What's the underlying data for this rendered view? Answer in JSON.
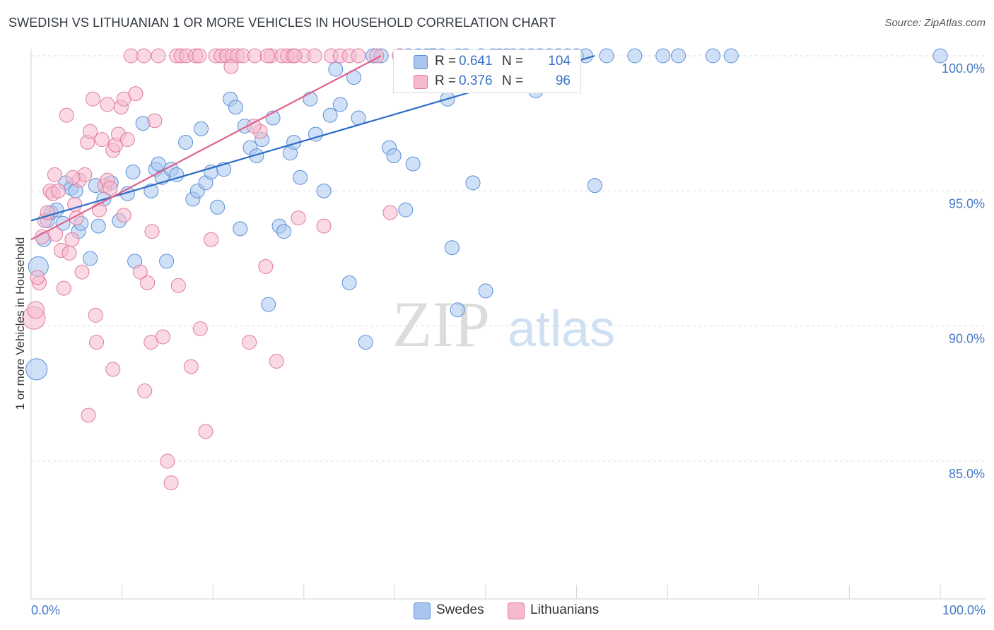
{
  "title": "SWEDISH VS LITHUANIAN 1 OR MORE VEHICLES IN HOUSEHOLD CORRELATION CHART",
  "source": "Source: ZipAtlas.com",
  "watermark": {
    "zip": "ZIP",
    "atlas": "atlas"
  },
  "legend": {
    "r_label": "R =",
    "n_label": "N =",
    "swedes": {
      "r": "0.641",
      "n": "104"
    },
    "lithuanians": {
      "r": "0.376",
      "n": "96"
    }
  },
  "bottom_legend": {
    "swedes": "Swedes",
    "lithuanians": "Lithuanians"
  },
  "colors": {
    "swedes_fill": "#a9c6ee",
    "swedes_stroke": "#5b8ed6",
    "swedes_line": "#2b6cc4",
    "lith_fill": "#f5bacd",
    "lith_stroke": "#e07a9c",
    "lith_line": "#e0608b",
    "tick_text": "#4a7bc8",
    "grid": "#d9dde3"
  },
  "chart_data": {
    "type": "scatter",
    "title": "SWEDISH VS LITHUANIAN 1 OR MORE VEHICLES IN HOUSEHOLD CORRELATION CHART",
    "xlabel": "",
    "ylabel": "1 or more Vehicles in Household",
    "xlim": [
      0,
      100
    ],
    "ylim": [
      80.5,
      100.8
    ],
    "x_tick_labels": [
      "0.0%",
      "100.0%"
    ],
    "y_ticks": [
      {
        "value": 100,
        "label": "100.0%"
      },
      {
        "value": 95,
        "label": "95.0%"
      },
      {
        "value": 90,
        "label": "90.0%"
      },
      {
        "value": 85,
        "label": "85.0%"
      }
    ],
    "grid": true,
    "series": [
      {
        "name": "Swedes",
        "trend": {
          "x": [
            0,
            62
          ],
          "y": [
            93.9,
            100
          ]
        },
        "points": [
          [
            0.8,
            92.2,
            14
          ],
          [
            0.6,
            88.4,
            15
          ],
          [
            1.4,
            93.2,
            10
          ],
          [
            1.8,
            93.9,
            10
          ],
          [
            2.2,
            94.2,
            10
          ],
          [
            2.8,
            94.3,
            10
          ],
          [
            3.5,
            93.8,
            10
          ],
          [
            3.8,
            95.3,
            10
          ],
          [
            4.4,
            95.1,
            10
          ],
          [
            4.9,
            95.0,
            10
          ],
          [
            5.2,
            93.5,
            10
          ],
          [
            5.5,
            93.8,
            10
          ],
          [
            6.5,
            92.5,
            10
          ],
          [
            7.1,
            95.2,
            10
          ],
          [
            7.4,
            93.7,
            10
          ],
          [
            8.0,
            94.7,
            10
          ],
          [
            8.8,
            95.3,
            10
          ],
          [
            9.7,
            93.9,
            10
          ],
          [
            10.6,
            94.9,
            10
          ],
          [
            11.2,
            95.7,
            10
          ],
          [
            11.4,
            92.4,
            10
          ],
          [
            12.3,
            97.5,
            10
          ],
          [
            13.2,
            95.0,
            10
          ],
          [
            13.7,
            95.8,
            10
          ],
          [
            14.0,
            96.0,
            10
          ],
          [
            14.4,
            95.5,
            10
          ],
          [
            14.9,
            92.4,
            10
          ],
          [
            15.4,
            95.8,
            10
          ],
          [
            16.0,
            95.6,
            10
          ],
          [
            17.0,
            96.8,
            10
          ],
          [
            17.8,
            94.7,
            10
          ],
          [
            18.3,
            95.0,
            10
          ],
          [
            18.7,
            97.3,
            10
          ],
          [
            19.2,
            95.3,
            10
          ],
          [
            19.8,
            95.7,
            10
          ],
          [
            20.5,
            94.4,
            10
          ],
          [
            21.2,
            95.8,
            10
          ],
          [
            21.9,
            98.4,
            10
          ],
          [
            22.5,
            98.1,
            10
          ],
          [
            23.0,
            93.6,
            10
          ],
          [
            23.5,
            97.4,
            10
          ],
          [
            24.1,
            96.6,
            10
          ],
          [
            24.8,
            96.3,
            10
          ],
          [
            25.4,
            96.9,
            10
          ],
          [
            26.1,
            90.8,
            10
          ],
          [
            26.6,
            97.7,
            10
          ],
          [
            27.3,
            93.7,
            10
          ],
          [
            27.8,
            93.5,
            10
          ],
          [
            28.5,
            96.4,
            10
          ],
          [
            28.9,
            96.8,
            10
          ],
          [
            29.6,
            95.5,
            10
          ],
          [
            30.7,
            98.4,
            10
          ],
          [
            31.3,
            97.1,
            10
          ],
          [
            32.2,
            95.0,
            10
          ],
          [
            32.9,
            97.8,
            10
          ],
          [
            33.5,
            99.5,
            10
          ],
          [
            34.0,
            98.2,
            10
          ],
          [
            35.0,
            91.6,
            10
          ],
          [
            35.5,
            99.2,
            10
          ],
          [
            36.0,
            97.7,
            10
          ],
          [
            36.8,
            89.4,
            10
          ],
          [
            37.6,
            100.0,
            10
          ],
          [
            38.5,
            100.0,
            10
          ],
          [
            39.4,
            96.6,
            10
          ],
          [
            39.9,
            96.3,
            10
          ],
          [
            40.6,
            100.0,
            10
          ],
          [
            41.2,
            94.3,
            10
          ],
          [
            42.0,
            96.0,
            10
          ],
          [
            42.6,
            100.0,
            10
          ],
          [
            43.5,
            100.0,
            10
          ],
          [
            44.3,
            100.0,
            10
          ],
          [
            45.2,
            100.0,
            10
          ],
          [
            45.8,
            98.4,
            10
          ],
          [
            46.3,
            92.9,
            10
          ],
          [
            46.9,
            90.6,
            10
          ],
          [
            47.8,
            100.0,
            10
          ],
          [
            48.6,
            95.3,
            10
          ],
          [
            50.0,
            91.3,
            10
          ],
          [
            50.8,
            100.0,
            10
          ],
          [
            51.5,
            100.0,
            10
          ],
          [
            52.3,
            100.0,
            10
          ],
          [
            53.0,
            100.0,
            10
          ],
          [
            54.0,
            100.0,
            10
          ],
          [
            55.0,
            100.0,
            10
          ],
          [
            56.0,
            100.0,
            10
          ],
          [
            57.0,
            100.0,
            10
          ],
          [
            58.0,
            100.0,
            10
          ],
          [
            59.0,
            100.0,
            10
          ],
          [
            60.0,
            100.0,
            10
          ],
          [
            61.0,
            100.0,
            10
          ],
          [
            62.0,
            95.2,
            10
          ],
          [
            63.3,
            100.0,
            10
          ],
          [
            66.4,
            100.0,
            10
          ],
          [
            69.5,
            100.0,
            10
          ],
          [
            71.2,
            100.0,
            10
          ],
          [
            75.0,
            100.0,
            10
          ],
          [
            77.0,
            100.0,
            10
          ],
          [
            100.0,
            100.0,
            10
          ],
          [
            49.5,
            100.0,
            10
          ],
          [
            55.5,
            98.7,
            10
          ],
          [
            58.5,
            99.0,
            10
          ],
          [
            44.0,
            100.0,
            10
          ],
          [
            41.5,
            100.0,
            10
          ],
          [
            47.0,
            100.0,
            10
          ]
        ]
      },
      {
        "name": "Lithuanians",
        "trend": {
          "x": [
            0,
            38.5
          ],
          "y": [
            93.2,
            100
          ]
        },
        "points": [
          [
            0.3,
            90.3,
            16
          ],
          [
            0.5,
            90.6,
            12
          ],
          [
            0.9,
            91.6,
            10
          ],
          [
            0.7,
            91.8,
            10
          ],
          [
            1.2,
            93.3,
            10
          ],
          [
            1.5,
            93.9,
            10
          ],
          [
            1.8,
            94.2,
            10
          ],
          [
            2.1,
            95.0,
            10
          ],
          [
            2.4,
            94.9,
            10
          ],
          [
            2.7,
            93.4,
            10
          ],
          [
            3.0,
            95.0,
            10
          ],
          [
            3.3,
            92.8,
            10
          ],
          [
            3.6,
            91.4,
            10
          ],
          [
            3.9,
            97.8,
            10
          ],
          [
            4.2,
            92.7,
            10
          ],
          [
            4.5,
            93.2,
            10
          ],
          [
            4.8,
            94.5,
            10
          ],
          [
            5.0,
            94.0,
            10
          ],
          [
            5.3,
            95.4,
            10
          ],
          [
            5.6,
            92.0,
            10
          ],
          [
            5.9,
            95.6,
            10
          ],
          [
            6.2,
            96.8,
            10
          ],
          [
            6.5,
            97.2,
            10
          ],
          [
            6.8,
            98.4,
            10
          ],
          [
            7.1,
            90.4,
            10
          ],
          [
            7.2,
            89.4,
            10
          ],
          [
            7.5,
            94.3,
            10
          ],
          [
            7.8,
            96.9,
            10
          ],
          [
            8.1,
            95.2,
            10
          ],
          [
            8.4,
            95.4,
            10
          ],
          [
            8.7,
            95.1,
            10
          ],
          [
            9.0,
            96.5,
            10
          ],
          [
            9.3,
            96.7,
            10
          ],
          [
            9.6,
            97.1,
            10
          ],
          [
            9.9,
            98.1,
            10
          ],
          [
            10.2,
            98.4,
            10
          ],
          [
            10.6,
            96.9,
            10
          ],
          [
            11.0,
            100.0,
            10
          ],
          [
            11.5,
            98.6,
            10
          ],
          [
            12.0,
            92.0,
            10
          ],
          [
            12.4,
            100.0,
            10
          ],
          [
            12.8,
            91.6,
            10
          ],
          [
            13.2,
            89.4,
            10
          ],
          [
            13.6,
            97.6,
            10
          ],
          [
            14.0,
            100.0,
            10
          ],
          [
            14.5,
            89.6,
            10
          ],
          [
            15.0,
            85.0,
            10
          ],
          [
            15.4,
            84.2,
            10
          ],
          [
            16.0,
            100.0,
            10
          ],
          [
            16.5,
            100.0,
            10
          ],
          [
            17.1,
            100.0,
            10
          ],
          [
            17.6,
            88.5,
            10
          ],
          [
            18.1,
            100.0,
            10
          ],
          [
            18.6,
            89.9,
            10
          ],
          [
            19.2,
            86.1,
            10
          ],
          [
            19.8,
            93.2,
            10
          ],
          [
            20.3,
            100.0,
            10
          ],
          [
            20.9,
            100.0,
            10
          ],
          [
            21.5,
            100.0,
            10
          ],
          [
            22.1,
            100.0,
            10
          ],
          [
            22.7,
            100.0,
            10
          ],
          [
            23.3,
            100.0,
            10
          ],
          [
            24.0,
            89.4,
            10
          ],
          [
            24.6,
            100.0,
            10
          ],
          [
            25.2,
            97.2,
            10
          ],
          [
            25.8,
            92.2,
            10
          ],
          [
            26.4,
            100.0,
            10
          ],
          [
            27.0,
            88.7,
            10
          ],
          [
            27.6,
            100.0,
            10
          ],
          [
            28.2,
            100.0,
            10
          ],
          [
            28.8,
            100.0,
            10
          ],
          [
            29.4,
            94.0,
            10
          ],
          [
            30.0,
            100.0,
            10
          ],
          [
            31.2,
            100.0,
            10
          ],
          [
            32.2,
            93.7,
            10
          ],
          [
            33.0,
            100.0,
            10
          ],
          [
            34.0,
            100.0,
            10
          ],
          [
            35.0,
            100.0,
            10
          ],
          [
            36.0,
            100.0,
            10
          ],
          [
            38.0,
            100.0,
            10
          ],
          [
            39.5,
            94.2,
            10
          ],
          [
            40.5,
            100.0,
            10
          ],
          [
            8.4,
            98.2,
            10
          ],
          [
            6.3,
            86.7,
            10
          ],
          [
            9.0,
            88.4,
            10
          ],
          [
            12.5,
            87.6,
            10
          ],
          [
            16.2,
            91.5,
            10
          ],
          [
            4.6,
            95.5,
            10
          ],
          [
            2.6,
            95.6,
            10
          ],
          [
            10.2,
            94.1,
            10
          ],
          [
            13.3,
            93.5,
            10
          ],
          [
            18.5,
            100.0,
            10
          ],
          [
            22.0,
            99.6,
            10
          ],
          [
            24.5,
            97.4,
            10
          ],
          [
            26.0,
            100.0,
            10
          ],
          [
            29.0,
            100.0,
            10
          ]
        ]
      }
    ]
  }
}
